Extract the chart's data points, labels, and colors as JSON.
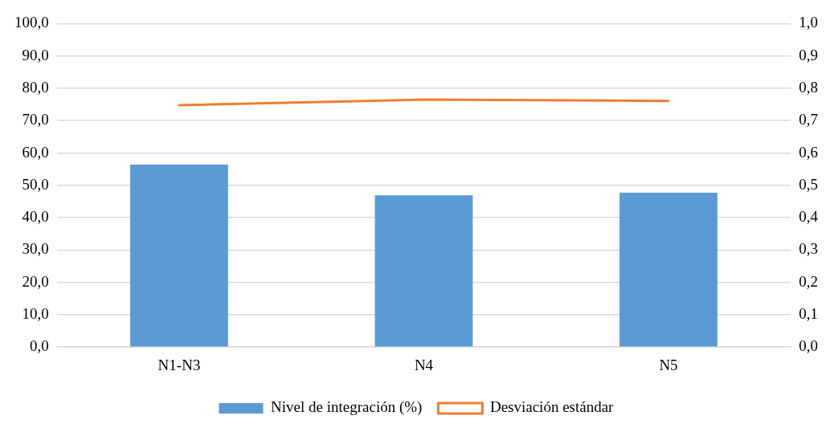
{
  "chart_data": {
    "type": "bar",
    "categories": [
      "N1-N3",
      "N4",
      "N5"
    ],
    "series": [
      {
        "name": "Nivel de integración (%)",
        "color": "#5b9bd5",
        "values": [
          56.4,
          46.9,
          47.7
        ]
      },
      {
        "name": "Desviación estándar",
        "type": "line",
        "axis": "y2",
        "color": "#ed7d31",
        "values": [
          0.748,
          0.765,
          0.761
        ],
        "marker": "none"
      }
    ],
    "ylim": [
      0,
      100
    ],
    "yticks": [
      {
        "value": 0,
        "label": "0,0"
      },
      {
        "value": 10,
        "label": "10,0"
      },
      {
        "value": 20,
        "label": "20,0"
      },
      {
        "value": 30,
        "label": "30,0"
      },
      {
        "value": 40,
        "label": "40,0"
      },
      {
        "value": 50,
        "label": "50,0"
      },
      {
        "value": 60,
        "label": "60,0"
      },
      {
        "value": 70,
        "label": "70,0"
      },
      {
        "value": 80,
        "label": "80,0"
      },
      {
        "value": 90,
        "label": "90,0"
      },
      {
        "value": 100,
        "label": "100,0"
      }
    ],
    "y2lim": [
      0,
      1
    ],
    "y2ticks": [
      {
        "value": 0,
        "label": "0,0"
      },
      {
        "value": 0.1,
        "label": "0,1"
      },
      {
        "value": 0.2,
        "label": "0,2"
      },
      {
        "value": 0.3,
        "label": "0,3"
      },
      {
        "value": 0.4,
        "label": "0,4"
      },
      {
        "value": 0.5,
        "label": "0,5"
      },
      {
        "value": 0.6,
        "label": "0,6"
      },
      {
        "value": 0.7,
        "label": "0,7"
      },
      {
        "value": 0.8,
        "label": "0,8"
      },
      {
        "value": 0.9,
        "label": "0,9"
      },
      {
        "value": 1,
        "label": "1,0"
      }
    ],
    "grid": "y",
    "legend": "bottom"
  }
}
